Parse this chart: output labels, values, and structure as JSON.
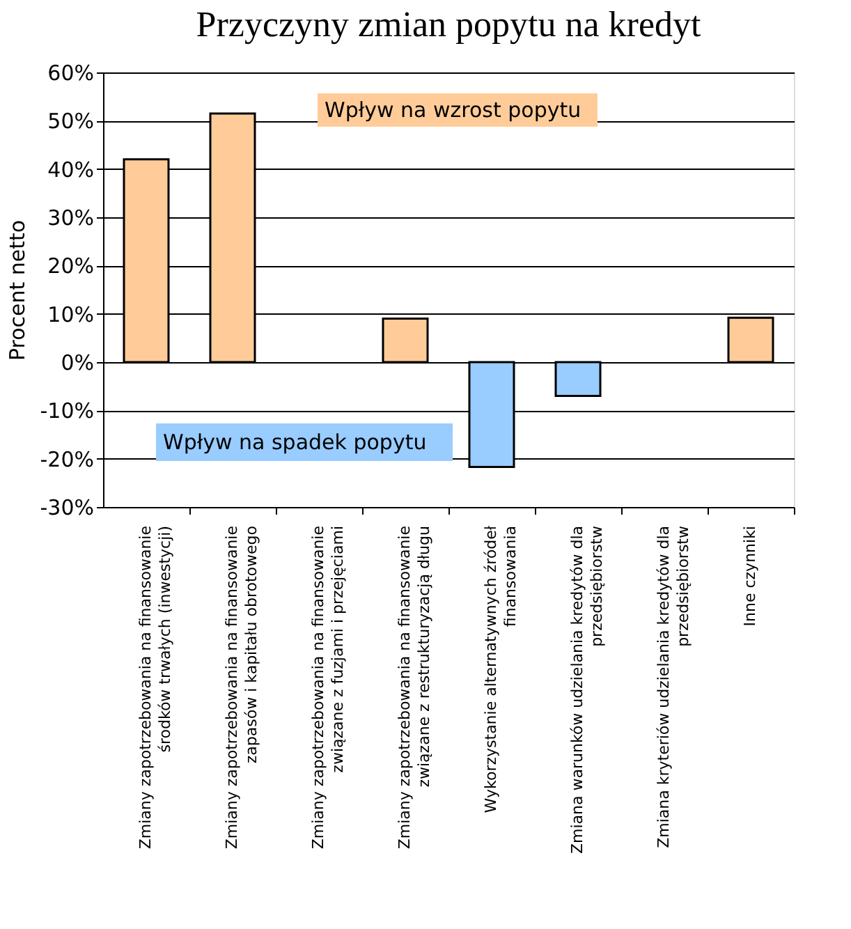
{
  "chart_data": {
    "type": "bar",
    "title": "Przyczyny zmian popytu na kredyt",
    "ylabel": "Procent netto",
    "categories": [
      "Zmiany zapotrzebowania na finansowanie środków trwałych (inwestycji)",
      "Zmiany zapotrzebowania na finansowanie zapasów i kapitału obrotowego",
      "Zmiany zapotrzebowania na finansowanie związane z fuzjami i przejęciami",
      "Zmiany zapotrzebowania na finansowanie związane z restrukturyzacją długu",
      "Wykorzystanie alternatywnych źródeł finansowania",
      "Zmiana warunków udzielania kredytów dla przedsiębiorstw",
      "Zmiana kryteriów udzielania kredytów dla przedsiębiorstw",
      "Inne czynniki"
    ],
    "values": [
      42,
      51.5,
      null,
      9,
      -21.7,
      -7,
      null,
      9.2
    ],
    "colors": [
      "#ffcc99",
      "#ffcc99",
      "#ffcc99",
      "#ffcc99",
      "#99ccff",
      "#99ccff",
      "#ffcc99",
      "#ffcc99"
    ],
    "ylim": [
      -30,
      60
    ],
    "yticks": [
      {
        "value": -30,
        "label": "-30%"
      },
      {
        "value": -20,
        "label": "-20%"
      },
      {
        "value": -10,
        "label": "-10%"
      },
      {
        "value": 0,
        "label": "0%"
      },
      {
        "value": 10,
        "label": "10%"
      },
      {
        "value": 20,
        "label": "20%"
      },
      {
        "value": 30,
        "label": "30%"
      },
      {
        "value": 40,
        "label": "40%"
      },
      {
        "value": 50,
        "label": "50%"
      },
      {
        "value": 60,
        "label": "60%"
      }
    ],
    "grid": "y",
    "annotations": [
      "Wpływ na wzrost popytu",
      "Wpływ na spadek popytu"
    ]
  }
}
